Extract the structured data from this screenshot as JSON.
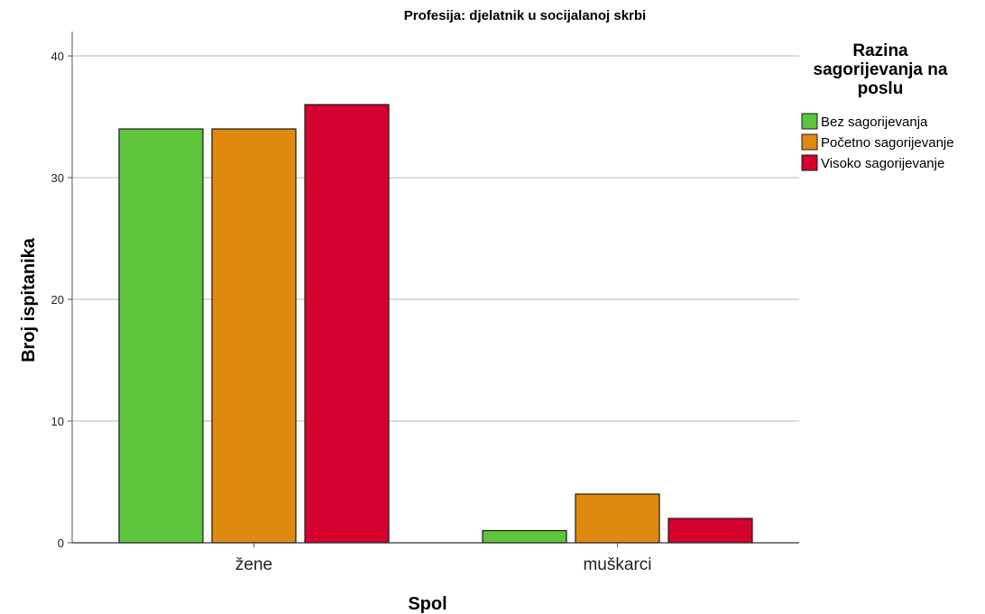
{
  "chart_data": {
    "type": "bar",
    "title": "Profesija: djelatnik u socijalanoj skrbi",
    "xlabel": "Spol",
    "ylabel": "Broj ispitanika",
    "categories": [
      "žene",
      "muškarci"
    ],
    "ylim": [
      0,
      42
    ],
    "yticks": [
      0,
      10,
      20,
      30,
      40
    ],
    "grid": true,
    "legend": {
      "title_lines": [
        "Razina",
        "sagorijevanja na",
        "poslu"
      ],
      "placement": "right"
    },
    "series": [
      {
        "name": "Bez sagorijevanja",
        "color": "#5ec43a",
        "values": [
          34,
          1
        ]
      },
      {
        "name": "Početno sagorijevanje",
        "color": "#e0890f",
        "values": [
          34,
          4
        ]
      },
      {
        "name": "Visoko sagorijevanje",
        "color": "#d4002e",
        "values": [
          36,
          2
        ]
      }
    ]
  }
}
